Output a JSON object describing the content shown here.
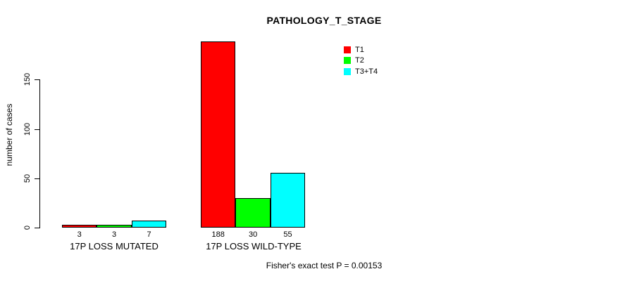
{
  "chart_data": {
    "type": "bar",
    "title": "PATHOLOGY_T_STAGE",
    "ylabel": "number of cases",
    "xlabel": "",
    "yticks": [
      0,
      50,
      100,
      150
    ],
    "ylim": [
      0,
      150
    ],
    "grid": false,
    "legend_position": "top-right",
    "categories": [
      "17P LOSS MUTATED",
      "17P LOSS WILD-TYPE"
    ],
    "series": [
      {
        "name": "T1",
        "color": "#ff0000",
        "values": [
          3,
          188
        ]
      },
      {
        "name": "T2",
        "color": "#00ff00",
        "values": [
          3,
          30
        ]
      },
      {
        "name": "T3+T4",
        "color": "#00ffff",
        "values": [
          7,
          55
        ]
      }
    ],
    "bar_value_labels": [
      [
        "3",
        "3",
        "7"
      ],
      [
        "188",
        "30",
        "55"
      ]
    ],
    "footer": "Fisher's exact test P = 0.00153"
  }
}
